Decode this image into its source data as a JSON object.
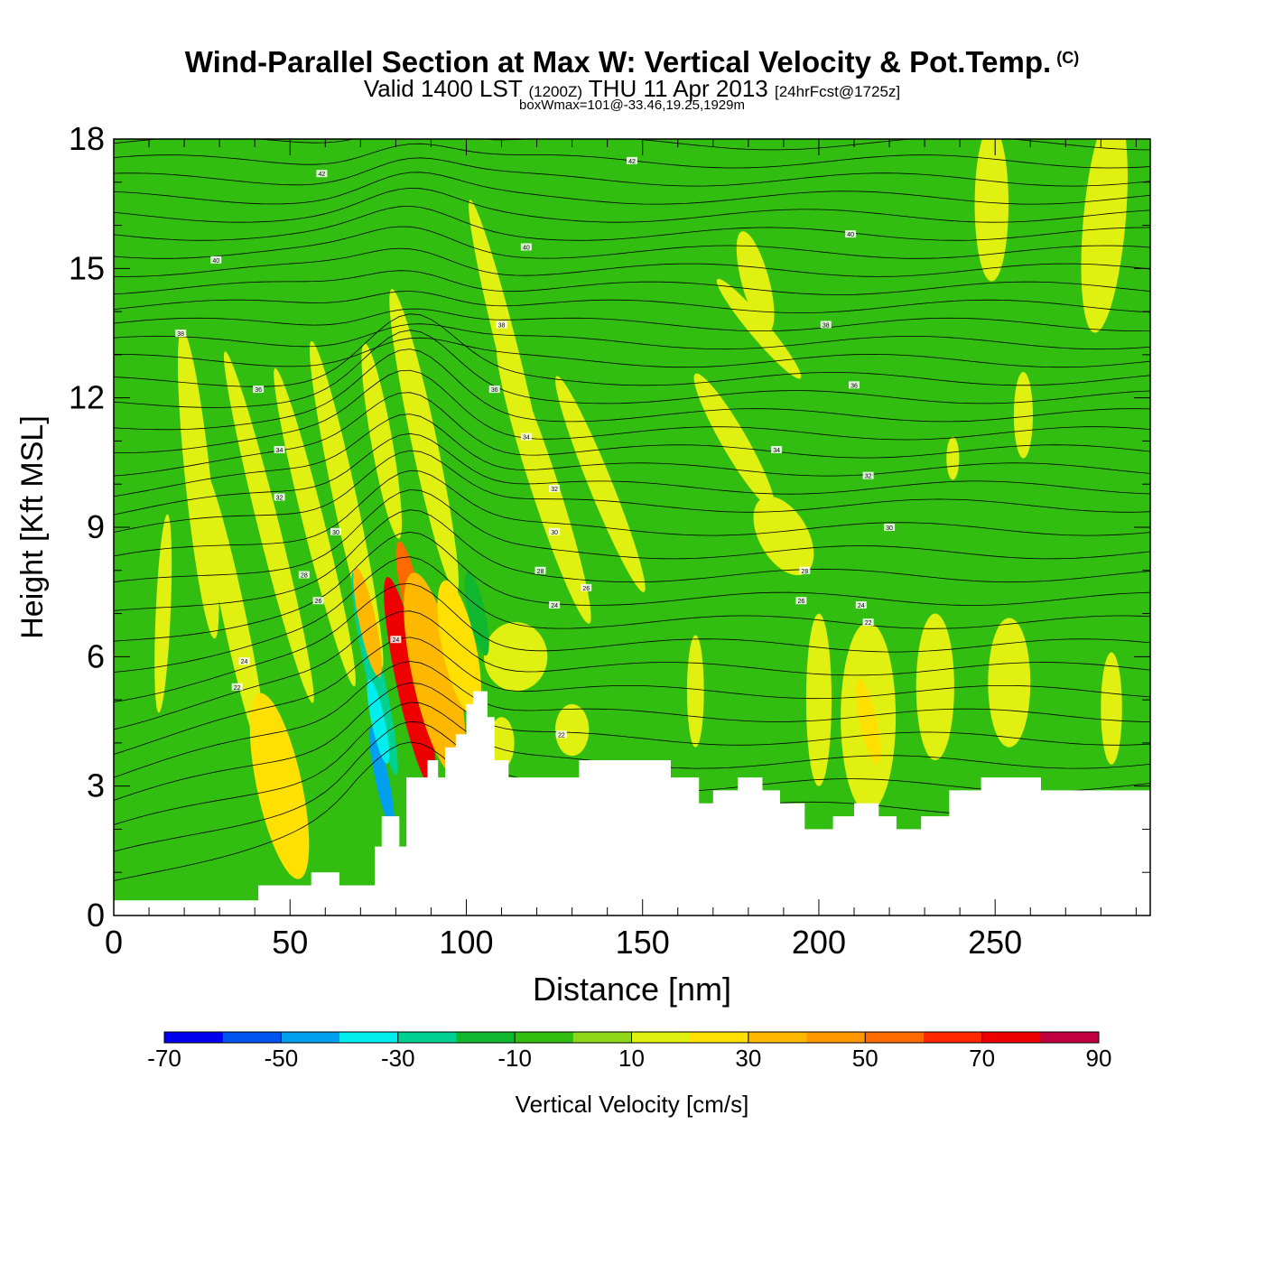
{
  "title": {
    "main": "Wind-Parallel Section at Max W: Vertical Velocity & Pot.Temp.",
    "copyright": "(C)",
    "valid_prefix": "Valid 1400 LST",
    "valid_utc": "(1200Z)",
    "valid_date": "THU 11 Apr 2013",
    "forecast": "[24hrFcst@1725z]",
    "box_wmax": "boxWmax=101@-33.46,19.25,1929m"
  },
  "chart_data": {
    "type": "heatmap",
    "xlabel": "Distance [nm]",
    "ylabel": "Height [Kft MSL]",
    "xlim": [
      0,
      294
    ],
    "ylim": [
      0,
      18
    ],
    "x_ticks": [
      0,
      50,
      100,
      150,
      200,
      250
    ],
    "y_ticks": [
      0,
      3,
      6,
      9,
      12,
      15,
      18
    ],
    "colorbar": {
      "label": "Vertical Velocity [cm/s]",
      "levels": [
        -70,
        -60,
        -50,
        -40,
        -30,
        -20,
        -10,
        0,
        10,
        20,
        30,
        40,
        50,
        60,
        70,
        80,
        90
      ],
      "tick_labels": [
        "-70",
        "-50",
        "-30",
        "-10",
        "10",
        "30",
        "50",
        "70",
        "90"
      ],
      "tick_values": [
        -70,
        -50,
        -30,
        -10,
        10,
        30,
        50,
        70,
        90
      ],
      "colors": [
        "#0000ee",
        "#0055f0",
        "#00a0ee",
        "#00eeee",
        "#00d090",
        "#10b830",
        "#32be10",
        "#8ed818",
        "#e0f010",
        "#ffe000",
        "#ffb800",
        "#ff9800",
        "#ff6a00",
        "#ff2800",
        "#ee0000",
        "#c00040"
      ]
    },
    "background_value_range": [
      0,
      10
    ],
    "terrain": [
      {
        "x": 0,
        "h": 0.35
      },
      {
        "x": 40,
        "h": 0.35
      },
      {
        "x": 41,
        "h": 0.7
      },
      {
        "x": 56,
        "h": 0.7
      },
      {
        "x": 56,
        "h": 1.0
      },
      {
        "x": 64,
        "h": 1.0
      },
      {
        "x": 64,
        "h": 0.7
      },
      {
        "x": 73,
        "h": 0.7
      },
      {
        "x": 74,
        "h": 1.6
      },
      {
        "x": 76,
        "h": 2.3
      },
      {
        "x": 80,
        "h": 2.3
      },
      {
        "x": 81,
        "h": 1.6
      },
      {
        "x": 83,
        "h": 3.2
      },
      {
        "x": 89,
        "h": 3.6
      },
      {
        "x": 92,
        "h": 3.2
      },
      {
        "x": 94,
        "h": 3.9
      },
      {
        "x": 97,
        "h": 4.2
      },
      {
        "x": 100,
        "h": 4.9
      },
      {
        "x": 102,
        "h": 5.2
      },
      {
        "x": 105,
        "h": 5.2
      },
      {
        "x": 106,
        "h": 4.6
      },
      {
        "x": 108,
        "h": 3.6
      },
      {
        "x": 112,
        "h": 3.2
      },
      {
        "x": 131,
        "h": 3.2
      },
      {
        "x": 132,
        "h": 3.6
      },
      {
        "x": 153,
        "h": 3.6
      },
      {
        "x": 158,
        "h": 3.2
      },
      {
        "x": 166,
        "h": 2.6
      },
      {
        "x": 170,
        "h": 2.9
      },
      {
        "x": 177,
        "h": 3.2
      },
      {
        "x": 184,
        "h": 2.9
      },
      {
        "x": 189,
        "h": 2.6
      },
      {
        "x": 196,
        "h": 2.0
      },
      {
        "x": 204,
        "h": 2.3
      },
      {
        "x": 210,
        "h": 2.6
      },
      {
        "x": 217,
        "h": 2.3
      },
      {
        "x": 222,
        "h": 2.0
      },
      {
        "x": 229,
        "h": 2.3
      },
      {
        "x": 237,
        "h": 2.9
      },
      {
        "x": 246,
        "h": 3.2
      },
      {
        "x": 263,
        "h": 2.9
      },
      {
        "x": 294,
        "h": 2.9
      }
    ],
    "w_cells": [
      {
        "x": 74,
        "y": 5.6,
        "dx": 1.6,
        "dy": 2.4,
        "w": -30
      },
      {
        "x": 76,
        "y": 3.2,
        "dx": 1.2,
        "dy": 1.2,
        "w": -50
      },
      {
        "x": 75,
        "y": 4.5,
        "dx": 1.2,
        "dy": 1.0,
        "w": -40
      },
      {
        "x": 72,
        "y": 6.8,
        "dx": 1.5,
        "dy": 1.3,
        "w": 30
      },
      {
        "x": 84,
        "y": 5.4,
        "dx": 2.4,
        "dy": 2.5,
        "w": 70
      },
      {
        "x": 84,
        "y": 7.5,
        "dx": 1.6,
        "dy": 1.2,
        "w": 50
      },
      {
        "x": 91,
        "y": 5.6,
        "dx": 4.0,
        "dy": 2.4,
        "w": 30
      },
      {
        "x": 98,
        "y": 6.2,
        "dx": 3.0,
        "dy": 1.6,
        "w": 20
      },
      {
        "x": 47,
        "y": 3.0,
        "dx": 4.0,
        "dy": 2.2,
        "w": 20
      },
      {
        "x": 214,
        "y": 4.5,
        "dx": 1.5,
        "dy": 1.0,
        "w": 20
      },
      {
        "x": 103,
        "y": 7.0,
        "dx": 1.5,
        "dy": 1.0,
        "w": -20
      },
      {
        "x": 34,
        "y": 3.5,
        "dx": 2.0,
        "dy": 1.0,
        "w": -10
      }
    ],
    "theta_labels": [
      {
        "x": 59,
        "y": 17.2,
        "text": "42"
      },
      {
        "x": 147,
        "y": 17.5,
        "text": "42"
      },
      {
        "x": 29,
        "y": 15.2,
        "text": "40"
      },
      {
        "x": 117,
        "y": 15.5,
        "text": "40"
      },
      {
        "x": 209,
        "y": 15.8,
        "text": "40"
      },
      {
        "x": 19,
        "y": 13.5,
        "text": "38"
      },
      {
        "x": 110,
        "y": 13.7,
        "text": "38"
      },
      {
        "x": 202,
        "y": 13.7,
        "text": "38"
      },
      {
        "x": 41,
        "y": 12.2,
        "text": "36"
      },
      {
        "x": 108,
        "y": 12.2,
        "text": "36"
      },
      {
        "x": 210,
        "y": 12.3,
        "text": "36"
      },
      {
        "x": 47,
        "y": 10.8,
        "text": "34"
      },
      {
        "x": 117,
        "y": 11.1,
        "text": "34"
      },
      {
        "x": 188,
        "y": 10.8,
        "text": "34"
      },
      {
        "x": 47,
        "y": 9.7,
        "text": "32"
      },
      {
        "x": 125,
        "y": 9.9,
        "text": "32"
      },
      {
        "x": 214,
        "y": 10.2,
        "text": "32"
      },
      {
        "x": 63,
        "y": 8.9,
        "text": "30"
      },
      {
        "x": 125,
        "y": 8.9,
        "text": "30"
      },
      {
        "x": 220,
        "y": 9.0,
        "text": "30"
      },
      {
        "x": 54,
        "y": 7.9,
        "text": "28"
      },
      {
        "x": 121,
        "y": 8.0,
        "text": "28"
      },
      {
        "x": 196,
        "y": 8.0,
        "text": "28"
      },
      {
        "x": 58,
        "y": 7.3,
        "text": "26"
      },
      {
        "x": 134,
        "y": 7.6,
        "text": "26"
      },
      {
        "x": 195,
        "y": 7.3,
        "text": "26"
      },
      {
        "x": 125,
        "y": 7.2,
        "text": "24"
      },
      {
        "x": 212,
        "y": 7.2,
        "text": "24"
      },
      {
        "x": 37,
        "y": 5.9,
        "text": "24"
      },
      {
        "x": 35,
        "y": 5.3,
        "text": "22"
      },
      {
        "x": 80,
        "y": 6.4,
        "text": "24"
      },
      {
        "x": 214,
        "y": 6.8,
        "text": "22"
      },
      {
        "x": 127,
        "y": 4.2,
        "text": "22"
      }
    ]
  }
}
